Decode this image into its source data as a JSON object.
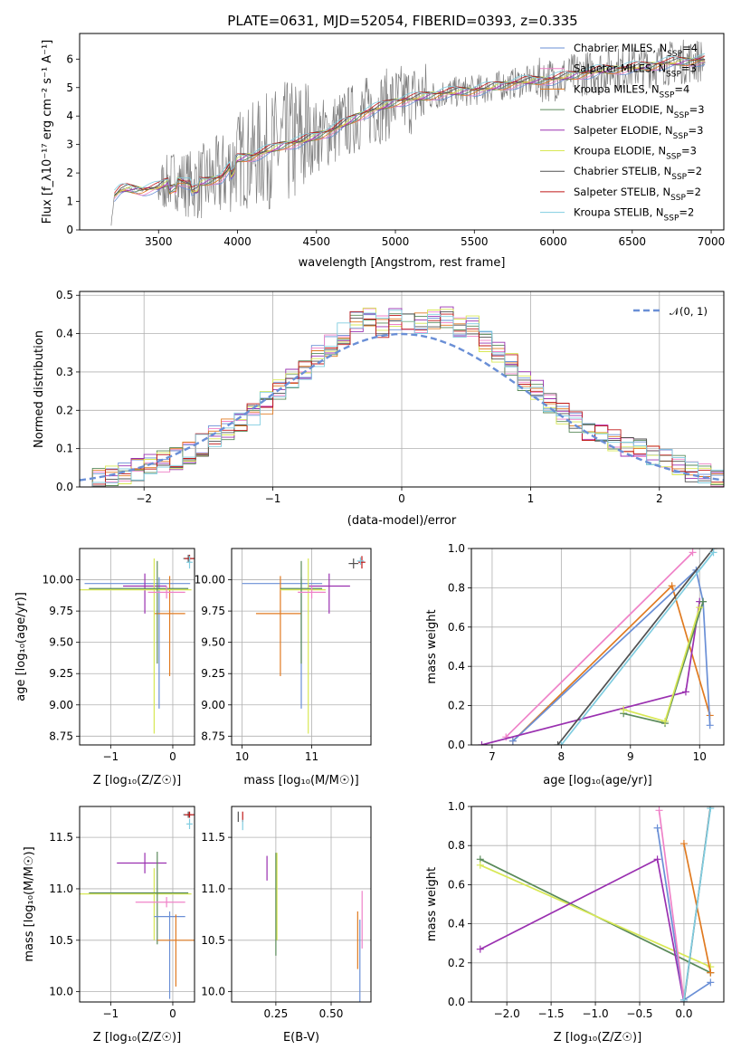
{
  "title": "PLATE=0631, MJD=52054, FIBERID=0393, z=0.335",
  "colors": {
    "chabrier_miles": "#6a8fd6",
    "salpeter_miles": "#ef82c8",
    "kroupa_miles": "#e07a20",
    "chabrier_elodie": "#5a8a5a",
    "salpeter_elodie": "#9a30b0",
    "kroupa_elodie": "#d8e855",
    "chabrier_stelib": "#505050",
    "salpeter_stelib": "#c01818",
    "kroupa_stelib": "#80cde0",
    "data": "#7f7f7f",
    "gauss": "#6a8fd6"
  },
  "chart_data": [
    {
      "type": "line",
      "xlabel": "wavelength [Angstrom, rest frame]",
      "ylabel": "Flux [f_λ10^-17 erg cm^-2 s^-1 A^-1]",
      "xlim": [
        3000,
        7080
      ],
      "ylim": [
        0,
        6.9
      ],
      "xticks": [
        "3500",
        "4000",
        "4500",
        "5000",
        "5500",
        "6000",
        "6500",
        "7000"
      ],
      "yticks": [
        "0",
        "1",
        "2",
        "3",
        "4",
        "5",
        "6"
      ],
      "legend_position": "top-right",
      "legend": [
        "Chabrier MILES, N_SSP=4",
        "Salpeter MILES, N_SSP=3",
        "Kroupa MILES, N_SSP=4",
        "Chabrier ELODIE, N_SSP=3",
        "Salpeter ELODIE, N_SSP=3",
        "Kroupa ELODIE, N_SSP=3",
        "Chabrier STELIB, N_SSP=2",
        "Salpeter STELIB, N_SSP=2",
        "Kroupa STELIB, N_SSP=2"
      ],
      "continuum": {
        "x": [
          3200,
          3220,
          3260,
          3300,
          3400,
          3500,
          3600,
          3700,
          3800,
          3900,
          4000,
          4100,
          4200,
          4300,
          4400,
          4500,
          4600,
          4700,
          4800,
          4900,
          5000,
          5100,
          5200,
          5300,
          5400,
          5500,
          5600,
          5700,
          5800,
          5900,
          6000,
          6100,
          6200,
          6300,
          6400,
          6500,
          6600,
          6700,
          6800,
          6900,
          7000
        ],
        "y": [
          0.2,
          1.2,
          1.4,
          1.45,
          1.4,
          1.5,
          1.8,
          1.6,
          1.7,
          1.85,
          2.5,
          2.6,
          2.8,
          3.0,
          3.1,
          3.3,
          3.5,
          3.8,
          4.1,
          4.3,
          4.5,
          4.6,
          4.7,
          4.8,
          4.85,
          4.9,
          5.0,
          5.1,
          5.2,
          5.25,
          5.3,
          5.4,
          5.5,
          5.6,
          5.65,
          5.7,
          5.75,
          5.85,
          5.9,
          5.95,
          6.0
        ]
      }
    },
    {
      "type": "histogram",
      "xlabel": "(data-model)/error",
      "ylabel": "Normed distribution",
      "xlim": [
        -2.5,
        2.5
      ],
      "ylim": [
        0,
        0.51
      ],
      "xticks": [
        "−2",
        "−1",
        "0",
        "1",
        "2"
      ],
      "yticks": [
        "0.0",
        "0.1",
        "0.2",
        "0.3",
        "0.4",
        "0.5"
      ],
      "legend": [
        "𝒩(0, 1)"
      ],
      "legend_position": "top-right",
      "bin_edges": [
        -2.5,
        -2.4,
        -2.3,
        -2.2,
        -2.1,
        -2.0,
        -1.9,
        -1.8,
        -1.7,
        -1.6,
        -1.5,
        -1.4,
        -1.3,
        -1.2,
        -1.1,
        -1.0,
        -0.9,
        -0.8,
        -0.7,
        -0.6,
        -0.5,
        -0.4,
        -0.3,
        -0.2,
        -0.1,
        0.0,
        0.1,
        0.2,
        0.3,
        0.4,
        0.5,
        0.6,
        0.7,
        0.8,
        0.9,
        1.0,
        1.1,
        1.2,
        1.3,
        1.4,
        1.5,
        1.6,
        1.7,
        1.8,
        1.9,
        2.0,
        2.1,
        2.2,
        2.3,
        2.4,
        2.5
      ],
      "reference_heights": [
        0.018,
        0.022,
        0.028,
        0.035,
        0.045,
        0.055,
        0.065,
        0.075,
        0.09,
        0.11,
        0.13,
        0.15,
        0.17,
        0.19,
        0.22,
        0.25,
        0.28,
        0.31,
        0.34,
        0.37,
        0.4,
        0.43,
        0.44,
        0.42,
        0.44,
        0.43,
        0.43,
        0.44,
        0.44,
        0.42,
        0.42,
        0.38,
        0.35,
        0.32,
        0.28,
        0.25,
        0.22,
        0.19,
        0.17,
        0.15,
        0.14,
        0.12,
        0.11,
        0.1,
        0.085,
        0.07,
        0.055,
        0.04,
        0.03,
        0.02
      ]
    },
    {
      "type": "scatter",
      "xlabel": "Z [log10(Z/Z☉)]",
      "ylabel": "age  [log10(age/yr)]",
      "xlim": [
        -1.5,
        0.35
      ],
      "ylim": [
        8.68,
        10.25
      ],
      "xticks": [
        "−1",
        "0"
      ],
      "yticks": [
        "8.75",
        "9.00",
        "9.25",
        "9.50",
        "9.75",
        "10.00"
      ],
      "errorbars": [
        {
          "series": "chabrier_miles",
          "x": -0.22,
          "y": 9.97,
          "xerr": [
            1.2,
            0.5
          ],
          "yerr": [
            1.0,
            0.05
          ]
        },
        {
          "series": "kroupa_miles",
          "x": -0.05,
          "y": 9.73,
          "xerr": [
            0.25,
            0.25
          ],
          "yerr": [
            0.5,
            0.3
          ]
        },
        {
          "series": "salpeter_elodie",
          "x": -0.45,
          "y": 9.95,
          "xerr": [
            0.35,
            0.35
          ],
          "yerr": [
            0.22,
            0.1
          ]
        },
        {
          "series": "kroupa_elodie",
          "x": -0.3,
          "y": 9.92,
          "xerr": [
            1.3,
            0.6
          ],
          "yerr": [
            1.15,
            0.25
          ]
        },
        {
          "series": "chabrier_elodie",
          "x": -0.25,
          "y": 9.93,
          "xerr": [
            1.1,
            0.5
          ],
          "yerr": [
            0.6,
            0.22
          ]
        },
        {
          "series": "salpeter_miles",
          "x": -0.1,
          "y": 9.9,
          "xerr": [
            0.3,
            0.3
          ],
          "yerr": [
            0.05,
            0.05
          ]
        },
        {
          "series": "chabrier_stelib",
          "x": 0.25,
          "y": 10.17,
          "xerr": [
            0.08,
            0.08
          ],
          "yerr": [
            0.03,
            0.03
          ]
        },
        {
          "series": "salpeter_stelib",
          "x": 0.27,
          "y": 10.17,
          "xerr": [
            0.08,
            0.08
          ],
          "yerr": [
            0.03,
            0.03
          ]
        },
        {
          "series": "kroupa_stelib",
          "x": 0.27,
          "y": 10.14,
          "xerr": [
            0.05,
            0.05
          ],
          "yerr": [
            0.05,
            0.05
          ]
        }
      ]
    },
    {
      "type": "scatter",
      "xlabel": "mass [log10(M/M☉)]",
      "ylabel": "",
      "xlim": [
        9.85,
        11.85
      ],
      "ylim": [
        8.68,
        10.25
      ],
      "xticks": [
        "10",
        "11"
      ],
      "yticks": [
        "8.75",
        "9.00",
        "9.25",
        "9.50",
        "9.75",
        "10.00"
      ],
      "errorbars": [
        {
          "series": "chabrier_miles",
          "x": 10.85,
          "y": 9.97,
          "xerr": [
            0.85,
            0.3
          ],
          "yerr": [
            1.0,
            0.05
          ]
        },
        {
          "series": "kroupa_miles",
          "x": 10.55,
          "y": 9.73,
          "xerr": [
            0.35,
            0.3
          ],
          "yerr": [
            0.5,
            0.3
          ]
        },
        {
          "series": "salpeter_elodie",
          "x": 11.25,
          "y": 9.95,
          "xerr": [
            0.3,
            0.3
          ],
          "yerr": [
            0.22,
            0.1
          ]
        },
        {
          "series": "kroupa_elodie",
          "x": 10.95,
          "y": 9.92,
          "xerr": [
            0.4,
            0.25
          ],
          "yerr": [
            1.15,
            0.25
          ]
        },
        {
          "series": "chabrier_elodie",
          "x": 10.85,
          "y": 9.93,
          "xerr": [
            0.3,
            0.3
          ],
          "yerr": [
            0.6,
            0.22
          ]
        },
        {
          "series": "salpeter_miles",
          "x": 11.0,
          "y": 9.9,
          "xerr": [
            0.2,
            0.2
          ],
          "yerr": [
            0.05,
            0.05
          ]
        },
        {
          "series": "chabrier_stelib",
          "x": 11.6,
          "y": 10.13,
          "xerr": [
            0.07,
            0.07
          ],
          "yerr": [
            0.04,
            0.04
          ]
        },
        {
          "series": "salpeter_stelib",
          "x": 11.72,
          "y": 10.14,
          "xerr": [
            0.05,
            0.05
          ],
          "yerr": [
            0.05,
            0.05
          ]
        },
        {
          "series": "kroupa_stelib",
          "x": 11.7,
          "y": 10.15,
          "xerr": [
            0.05,
            0.05
          ],
          "yerr": [
            0.03,
            0.03
          ]
        }
      ]
    },
    {
      "type": "line",
      "xlabel": "age  [log10(age/yr)]",
      "ylabel": "mass weight",
      "xlim": [
        6.7,
        10.35
      ],
      "ylim": [
        0,
        1.0
      ],
      "xticks": [
        "7",
        "8",
        "9",
        "10"
      ],
      "yticks": [
        "0.0",
        "0.2",
        "0.4",
        "0.6",
        "0.8",
        "1.0"
      ],
      "series": [
        {
          "key": "salpeter_miles",
          "x": [
            7.2,
            9.9
          ],
          "y": [
            0.04,
            0.98
          ]
        },
        {
          "key": "kroupa_miles",
          "x": [
            7.3,
            9.6,
            10.15
          ],
          "y": [
            0.02,
            0.81,
            0.15
          ]
        },
        {
          "key": "chabrier_miles",
          "x": [
            7.3,
            9.95,
            10.05,
            10.15
          ],
          "y": [
            0.02,
            0.89,
            0.73,
            0.1
          ]
        },
        {
          "key": "salpeter_elodie",
          "x": [
            6.85,
            9.8,
            10.0
          ],
          "y": [
            0.0,
            0.27,
            0.73
          ]
        },
        {
          "key": "chabrier_elodie",
          "x": [
            8.9,
            9.5,
            10.05
          ],
          "y": [
            0.16,
            0.11,
            0.73
          ]
        },
        {
          "key": "kroupa_elodie",
          "x": [
            8.9,
            9.5,
            10.0
          ],
          "y": [
            0.18,
            0.12,
            0.7
          ]
        },
        {
          "key": "chabrier_stelib",
          "x": [
            7.95,
            10.2
          ],
          "y": [
            0.0,
            1.0
          ]
        },
        {
          "key": "kroupa_stelib",
          "x": [
            8.0,
            10.2
          ],
          "y": [
            0.0,
            0.98
          ]
        }
      ]
    },
    {
      "type": "scatter",
      "xlabel": "Z [log10(Z/Z☉)]",
      "ylabel": "mass [log10(M/M☉)]",
      "xlim": [
        -1.5,
        0.35
      ],
      "ylim": [
        9.9,
        11.8
      ],
      "xticks": [
        "−1",
        "0"
      ],
      "yticks": [
        "10.0",
        "10.5",
        "11.0",
        "11.5"
      ],
      "errorbars": [
        {
          "series": "salpeter_elodie",
          "x": -0.45,
          "y": 11.25,
          "xerr": [
            0.45,
            0.35
          ],
          "yerr": [
            0.1,
            0.1
          ]
        },
        {
          "series": "kroupa_elodie",
          "x": -0.3,
          "y": 10.95,
          "xerr": [
            1.3,
            0.6
          ],
          "yerr": [
            0.45,
            0.25
          ]
        },
        {
          "series": "chabrier_elodie",
          "x": -0.25,
          "y": 10.96,
          "xerr": [
            1.1,
            0.5
          ],
          "yerr": [
            0.5,
            0.4
          ]
        },
        {
          "series": "salpeter_miles",
          "x": -0.1,
          "y": 10.87,
          "xerr": [
            0.5,
            0.3
          ],
          "yerr": [
            0.05,
            0.05
          ]
        },
        {
          "series": "chabrier_miles",
          "x": -0.05,
          "y": 10.73,
          "xerr": [
            0.25,
            0.25
          ],
          "yerr": [
            0.8,
            0.05
          ]
        },
        {
          "series": "kroupa_miles",
          "x": 0.05,
          "y": 10.5,
          "xerr": [
            0.3,
            0.3
          ],
          "yerr": [
            0.45,
            0.25
          ]
        },
        {
          "series": "chabrier_stelib",
          "x": 0.25,
          "y": 11.72,
          "xerr": [
            0.08,
            0.08
          ],
          "yerr": [
            0.03,
            0.03
          ]
        },
        {
          "series": "salpeter_stelib",
          "x": 0.27,
          "y": 11.72,
          "xerr": [
            0.08,
            0.08
          ],
          "yerr": [
            0.03,
            0.03
          ]
        },
        {
          "series": "kroupa_stelib",
          "x": 0.27,
          "y": 11.63,
          "xerr": [
            0.05,
            0.05
          ],
          "yerr": [
            0.05,
            0.05
          ]
        }
      ]
    },
    {
      "type": "scatter",
      "xlabel": "E(B-V)",
      "ylabel": "",
      "xlim": [
        0.05,
        0.68
      ],
      "ylim": [
        9.9,
        11.8
      ],
      "xticks": [
        "0.25",
        "0.50"
      ],
      "yticks": [
        "10.0",
        "10.5",
        "11.0",
        "11.5"
      ],
      "errorbars": [
        {
          "series": "salpeter_elodie",
          "x": 0.21,
          "y": 11.2,
          "xerr": [
            0,
            0
          ],
          "yerr": [
            0.12,
            0.12
          ]
        },
        {
          "series": "kroupa_elodie",
          "x": 0.255,
          "y": 10.95,
          "xerr": [
            0,
            0
          ],
          "yerr": [
            0.45,
            0.4
          ]
        },
        {
          "series": "chabrier_elodie",
          "x": 0.25,
          "y": 10.95,
          "xerr": [
            0,
            0
          ],
          "yerr": [
            0.6,
            0.4
          ]
        },
        {
          "series": "salpeter_miles",
          "x": 0.64,
          "y": 10.7,
          "xerr": [
            0,
            0
          ],
          "yerr": [
            0.28,
            0.28
          ]
        },
        {
          "series": "chabrier_miles",
          "x": 0.63,
          "y": 10.3,
          "xerr": [
            0,
            0
          ],
          "yerr": [
            0.4,
            0.4
          ]
        },
        {
          "series": "kroupa_miles",
          "x": 0.62,
          "y": 10.5,
          "xerr": [
            0,
            0
          ],
          "yerr": [
            0.28,
            0.28
          ]
        },
        {
          "series": "chabrier_stelib",
          "x": 0.08,
          "y": 11.7,
          "xerr": [
            0,
            0
          ],
          "yerr": [
            0.05,
            0.05
          ]
        },
        {
          "series": "salpeter_stelib",
          "x": 0.1,
          "y": 11.7,
          "xerr": [
            0,
            0
          ],
          "yerr": [
            0.05,
            0.05
          ]
        },
        {
          "series": "kroupa_stelib",
          "x": 0.1,
          "y": 11.62,
          "xerr": [
            0,
            0
          ],
          "yerr": [
            0.05,
            0.05
          ]
        }
      ]
    },
    {
      "type": "line",
      "xlabel": "Z [log10(Z/Z☉)]",
      "ylabel": "mass weight",
      "xlim": [
        -2.4,
        0.45
      ],
      "ylim": [
        0,
        1.0
      ],
      "xticks": [
        "−2.0",
        "−1.5",
        "−1.0",
        "−0.5",
        "0.0"
      ],
      "yticks": [
        "0.0",
        "0.2",
        "0.4",
        "0.6",
        "0.8",
        "1.0"
      ],
      "series": [
        {
          "key": "chabrier_elodie",
          "x": [
            -2.3,
            0.3
          ],
          "y": [
            0.73,
            0.15
          ]
        },
        {
          "key": "kroupa_elodie",
          "x": [
            -2.3,
            0.3
          ],
          "y": [
            0.7,
            0.18
          ]
        },
        {
          "key": "salpeter_elodie",
          "x": [
            -2.3,
            -0.3,
            0.0
          ],
          "y": [
            0.27,
            0.73,
            0.0
          ]
        },
        {
          "key": "kroupa_miles",
          "x": [
            0.0,
            0.3
          ],
          "y": [
            0.81,
            0.15
          ]
        },
        {
          "key": "chabrier_miles",
          "x": [
            -0.3,
            0.0,
            0.3
          ],
          "y": [
            0.89,
            0.01,
            0.1
          ]
        },
        {
          "key": "salpeter_miles",
          "x": [
            -0.28,
            0.0
          ],
          "y": [
            0.98,
            0.01
          ]
        },
        {
          "key": "chabrier_stelib",
          "x": [
            0.0,
            0.3
          ],
          "y": [
            0.0,
            1.0
          ]
        },
        {
          "key": "kroupa_stelib",
          "x": [
            0.0,
            0.3
          ],
          "y": [
            0.01,
            0.99
          ]
        }
      ]
    }
  ]
}
